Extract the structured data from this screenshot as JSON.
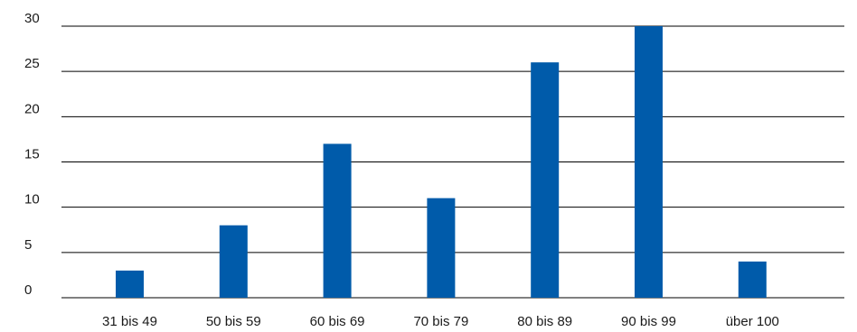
{
  "chart_data": {
    "type": "bar",
    "title": "",
    "xlabel": "",
    "ylabel": "",
    "categories": [
      "31 bis 49",
      "50 bis 59",
      "60 bis 69",
      "70 bis 79",
      "80 bis 89",
      "90 bis 99",
      "über 100"
    ],
    "values": [
      3,
      8,
      17,
      11,
      26,
      30,
      4
    ],
    "ylim": [
      0,
      30
    ],
    "yticks": [
      "0",
      "5",
      "10",
      "15",
      "20",
      "25",
      "30"
    ],
    "grid": true,
    "legend": "none",
    "colors": {
      "bar": "#005BAA",
      "grid": "#000000"
    }
  }
}
